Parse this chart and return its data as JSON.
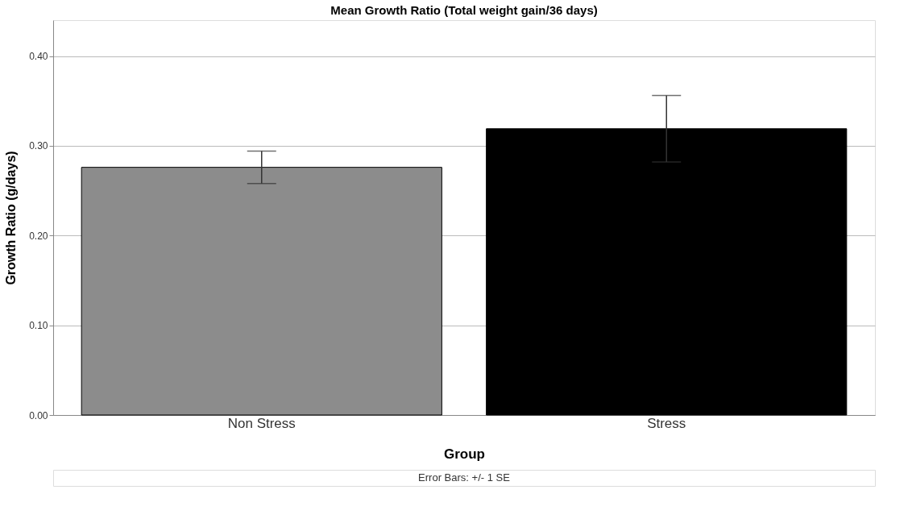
{
  "chart_data": {
    "type": "bar",
    "title": "Mean Growth Ratio (Total weight gain/36 days)",
    "xlabel": "Group",
    "ylabel": "Growth Ratio (g/days)",
    "categories": [
      "Non Stress",
      "Stress"
    ],
    "values": [
      0.276,
      0.319
    ],
    "colors": [
      "#8c8c8c",
      "#000000"
    ],
    "errors": [
      0.018,
      0.037
    ],
    "ylim": [
      0,
      0.44
    ],
    "yticks": [
      {
        "value": 0,
        "label": "0.00"
      },
      {
        "value": 0.1,
        "label": "0.10"
      },
      {
        "value": 0.2,
        "label": "0.20"
      },
      {
        "value": 0.3,
        "label": "0.30"
      },
      {
        "value": 0.4,
        "label": "0.40"
      }
    ],
    "grid": "y",
    "annotations": [
      "Error Bars: +/- 1 SE"
    ]
  }
}
